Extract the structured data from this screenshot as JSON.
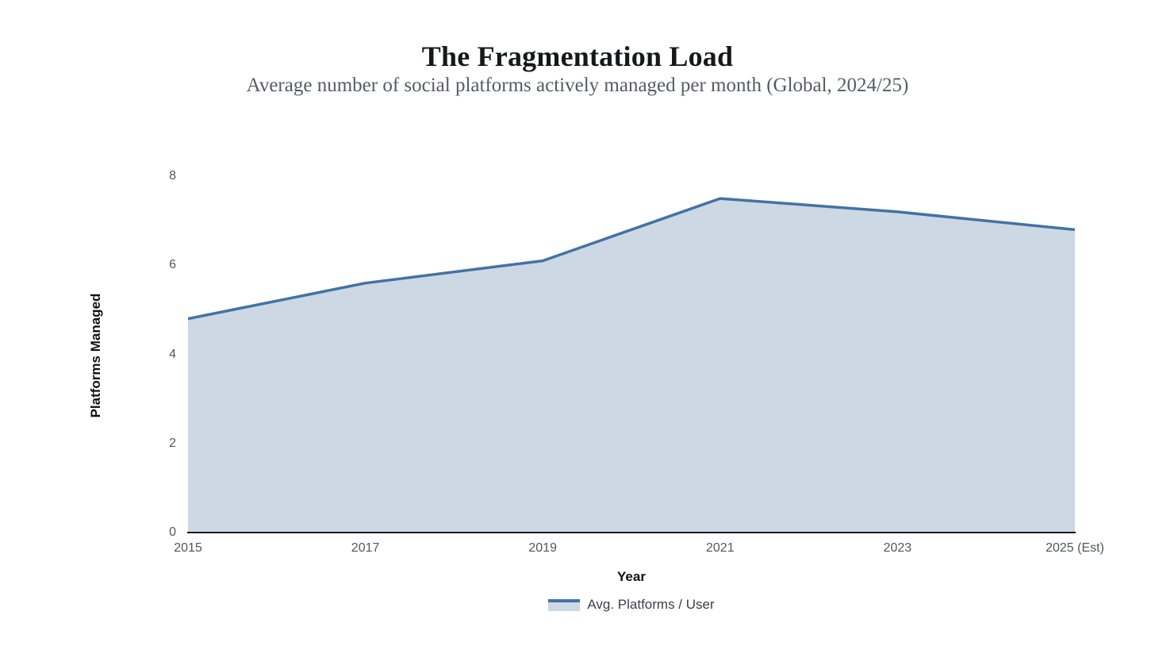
{
  "header": {
    "title": "The Fragmentation Load",
    "subtitle": "Average number of social platforms actively managed per month (Global, 2024/25)"
  },
  "chart_data": {
    "type": "area",
    "title": "The Fragmentation Load",
    "subtitle": "Average number of social platforms actively managed per month (Global, 2024/25)",
    "categories": [
      "2015",
      "2017",
      "2019",
      "2021",
      "2023",
      "2025 (Est)"
    ],
    "series": [
      {
        "name": "Avg. Platforms / User",
        "values": [
          4.8,
          5.6,
          6.1,
          7.5,
          7.2,
          6.8
        ]
      }
    ],
    "xlabel": "Year",
    "ylabel": "Platforms Managed",
    "ylim": [
      0,
      8
    ],
    "yticks": [
      0,
      2,
      4,
      6,
      8
    ],
    "grid": false,
    "legend_position": "bottom",
    "colors": {
      "line": "#4472a4",
      "fill": "#cdd8e5",
      "axis": "#16181d",
      "tick_label": "#54575c"
    }
  }
}
